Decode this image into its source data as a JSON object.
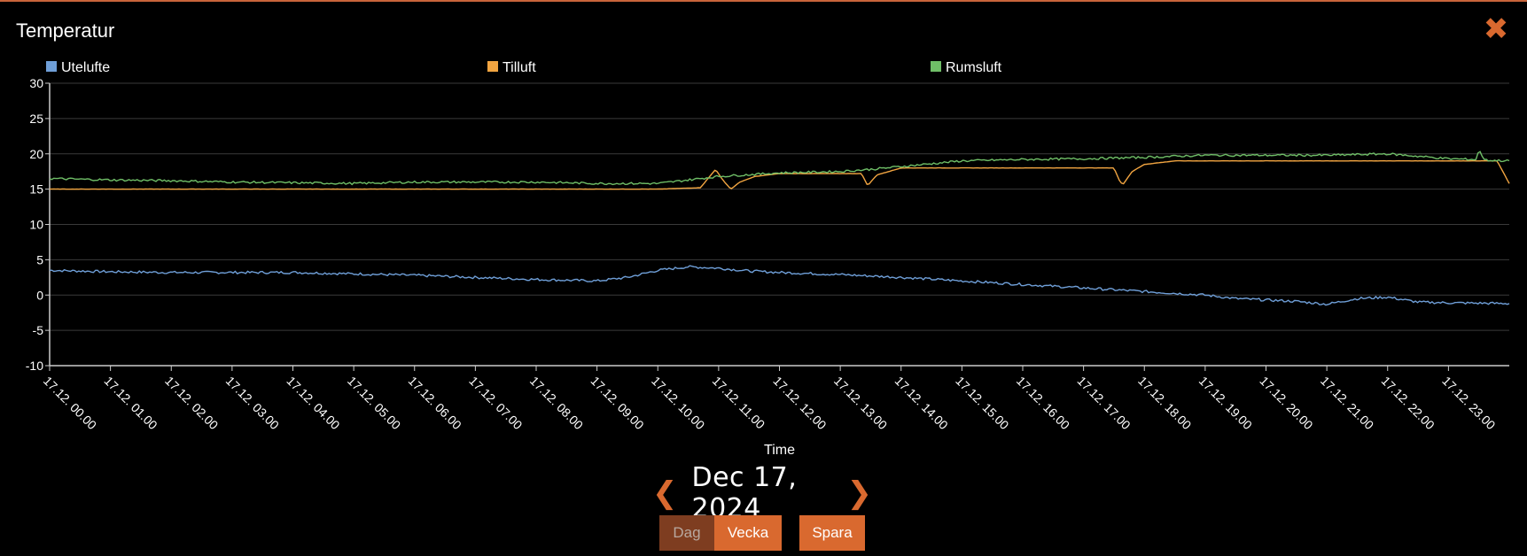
{
  "header": {
    "title": "Temperatur",
    "close_icon": "close-icon"
  },
  "navigation": {
    "date": "Dec 17, 2024",
    "prev_icon": "chevron-left-icon",
    "next_icon": "chevron-right-icon",
    "buttons": {
      "day": "Dag",
      "week": "Vecka",
      "save": "Spara"
    }
  },
  "colors": {
    "accent": "#d9692f",
    "accent_dark": "#7e3d20",
    "utelufte": "#6f9fd8",
    "tilluft": "#f2a541",
    "rumsluft": "#6fbe67",
    "grid": "#3a3a3a"
  },
  "chart_data": {
    "type": "line",
    "title": "",
    "xlabel": "Time",
    "ylabel": "",
    "ylim": [
      -10,
      30
    ],
    "yticks": [
      -10,
      -5,
      0,
      5,
      10,
      15,
      20,
      25,
      30
    ],
    "xlim": [
      0,
      24
    ],
    "xtick_labels": [
      "17.12. 00.00",
      "17.12. 01.00",
      "17.12. 02.00",
      "17.12. 03.00",
      "17.12. 04.00",
      "17.12. 05.00",
      "17.12. 06.00",
      "17.12. 07.00",
      "17.12. 08.00",
      "17.12. 09.00",
      "17.12. 10.00",
      "17.12. 11.00",
      "17.12. 12.00",
      "17.12. 13.00",
      "17.12. 14.00",
      "17.12. 15.00",
      "17.12. 16.00",
      "17.12. 17.00",
      "17.12. 18.00",
      "17.12. 19.00",
      "17.12. 20.00",
      "17.12. 21.00",
      "17.12. 22.00",
      "17.12. 23.00"
    ],
    "legend_position": "top",
    "grid": true,
    "series": [
      {
        "name": "Utelufte",
        "color": "#6f9fd8",
        "x": [
          0,
          1,
          2,
          3,
          4,
          5,
          6,
          7,
          8,
          9,
          9.5,
          10,
          10.5,
          11,
          11.5,
          12,
          13,
          14,
          15,
          16,
          17,
          18,
          19,
          19.5,
          20,
          20.5,
          21,
          21.5,
          22,
          22.5,
          23,
          24
        ],
        "y": [
          3.5,
          3.3,
          3.2,
          3.2,
          3.2,
          3.0,
          2.8,
          2.5,
          2.2,
          2.0,
          2.5,
          3.5,
          4.0,
          3.8,
          3.4,
          3.2,
          2.9,
          2.5,
          2.0,
          1.5,
          1.0,
          0.5,
          0.0,
          -0.5,
          -0.7,
          -0.9,
          -1.3,
          -0.5,
          -0.3,
          -1.0,
          -1.1,
          -1.2
        ]
      },
      {
        "name": "Tilluft",
        "color": "#f2a541",
        "x": [
          0,
          1,
          2,
          3,
          4,
          5,
          6,
          7,
          8,
          9,
          10,
          10.7,
          10.95,
          11.05,
          11.2,
          11.35,
          11.6,
          12,
          13,
          13.35,
          13.45,
          13.6,
          14,
          14.5,
          15,
          16,
          17,
          17.5,
          17.6,
          17.65,
          17.8,
          18,
          18.5,
          19,
          20,
          21,
          22,
          23,
          23.8,
          24
        ],
        "y": [
          15.0,
          15.0,
          15.0,
          15.0,
          15.0,
          15.0,
          15.0,
          15.0,
          15.0,
          15.0,
          15.0,
          15.2,
          17.8,
          16.5,
          15.0,
          16.0,
          16.8,
          17.2,
          17.2,
          17.2,
          15.5,
          17.0,
          18.0,
          18.0,
          18.0,
          18.0,
          18.0,
          18.0,
          16.0,
          15.7,
          17.5,
          18.5,
          19.0,
          19.0,
          19.0,
          19.0,
          19.0,
          19.0,
          19.0,
          15.8
        ]
      },
      {
        "name": "Rumsluft",
        "color": "#6fbe67",
        "x": [
          0,
          1,
          2,
          3,
          4,
          5,
          6,
          7,
          8,
          9,
          10,
          10.5,
          11,
          12,
          13,
          13.5,
          14,
          14.5,
          15,
          16,
          17,
          18,
          19,
          20,
          21,
          22,
          23,
          23.45,
          23.5,
          23.6,
          24
        ],
        "y": [
          16.5,
          16.3,
          16.2,
          16.0,
          15.9,
          15.8,
          16.0,
          16.0,
          16.0,
          15.8,
          15.8,
          16.3,
          16.8,
          17.3,
          17.5,
          17.8,
          18.2,
          18.6,
          19.0,
          19.2,
          19.3,
          19.5,
          19.8,
          19.8,
          19.8,
          20.0,
          19.3,
          19.2,
          20.5,
          19.1,
          19.0
        ]
      }
    ]
  }
}
